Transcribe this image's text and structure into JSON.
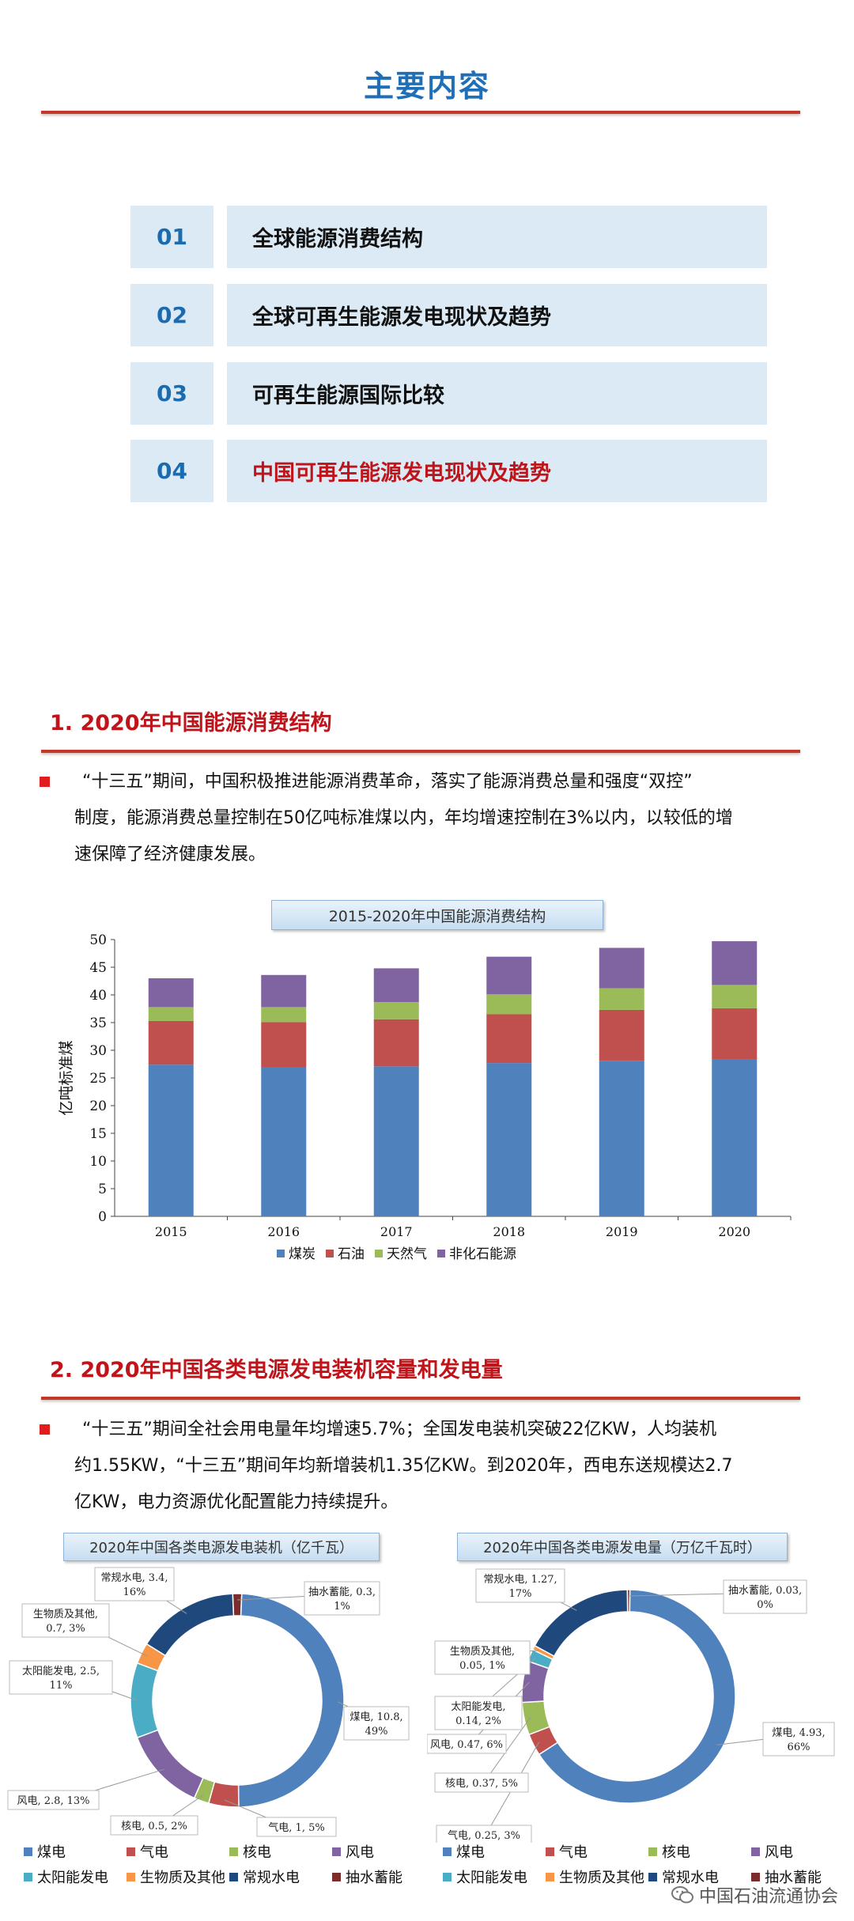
{
  "header": {
    "title": "主要内容"
  },
  "toc": [
    {
      "num": "01",
      "label": "全球能源消费结构",
      "active": false
    },
    {
      "num": "02",
      "label": "全球可再生能源发电现状及趋势",
      "active": false
    },
    {
      "num": "03",
      "label": "可再生能源国际比较",
      "active": false
    },
    {
      "num": "04",
      "label": "中国可再生能源发电现状及趋势",
      "active": true
    }
  ],
  "section1": {
    "title": "1. 2020年中国能源消费结构",
    "lines": [
      "“十三五”期间，中国积极推进能源消费革命，落实了能源消费总量和强度“双控”",
      "制度，能源消费总量控制在50亿吨标准煤以内，年均增速控制在3%以内，以较低的增",
      "速保障了经济健康发展。"
    ]
  },
  "section2": {
    "title": "2. 2020年中国各类电源发电装机容量和发电量",
    "lines": [
      "“十三五”期间全社会用电量年均增速5.7%；全国发电装机突破22亿KW，人均装机",
      "约1.55KW，“十三五”期间年均新增装机1.35亿KW。到2020年，西电东送规模达2.7",
      "亿KW，电力资源优化配置能力持续提升。"
    ]
  },
  "colors": {
    "coal": "#4f81bd",
    "gas": "#c0504d",
    "nuclear": "#9bbb59",
    "wind": "#8064a2",
    "solar": "#4bacc6",
    "bio": "#f79646",
    "hydro": "#1f497d",
    "pumped": "#7b2c2c",
    "accent_red": "#c0141b",
    "accent_blue": "#1f6fb8"
  },
  "chart_data": [
    {
      "type": "bar",
      "stacked": true,
      "title": "2015-2020年中国能源消费结构",
      "ylabel": "亿吨标准煤",
      "xlabel": "",
      "ylim": [
        0,
        50
      ],
      "yticks": [
        0,
        5,
        10,
        15,
        20,
        25,
        30,
        35,
        40,
        45,
        50
      ],
      "categories": [
        "2015",
        "2016",
        "2017",
        "2018",
        "2019",
        "2020"
      ],
      "legend_position": "bottom",
      "series": [
        {
          "name": "煤炭",
          "color": "#4f81bd",
          "values": [
            27.4,
            27.0,
            27.1,
            27.7,
            28.1,
            28.3
          ]
        },
        {
          "name": "石油",
          "color": "#c0504d",
          "values": [
            7.9,
            8.1,
            8.5,
            8.8,
            9.2,
            9.3
          ]
        },
        {
          "name": "天然气",
          "color": "#9bbb59",
          "values": [
            2.5,
            2.7,
            3.1,
            3.6,
            3.9,
            4.2
          ]
        },
        {
          "name": "非化石能源",
          "color": "#8064a2",
          "values": [
            5.2,
            5.8,
            6.1,
            6.8,
            7.3,
            7.9
          ]
        }
      ]
    },
    {
      "type": "pie",
      "donut": true,
      "title": "2020年中国各类电源发电装机（亿千瓦）",
      "slices": [
        {
          "name": "煤电",
          "value": 10.8,
          "label": "煤电, 10.8,",
          "pct": "49%",
          "color": "#4f81bd"
        },
        {
          "name": "气电",
          "value": 1,
          "label": "气电, 1, 5%",
          "pct": "",
          "color": "#c0504d"
        },
        {
          "name": "核电",
          "value": 0.5,
          "label": "核电, 0.5, 2%",
          "pct": "",
          "color": "#9bbb59"
        },
        {
          "name": "风电",
          "value": 2.8,
          "label": "风电, 2.8, 13%",
          "pct": "",
          "color": "#8064a2"
        },
        {
          "name": "太阳能发电",
          "value": 2.5,
          "label": "太阳能发电, 2.5,",
          "pct": "11%",
          "color": "#4bacc6"
        },
        {
          "name": "生物质及其他",
          "value": 0.7,
          "label": "生物质及其他,",
          "pct": "0.7, 3%",
          "color": "#f79646"
        },
        {
          "name": "常规水电",
          "value": 3.4,
          "label": "常规水电, 3.4,",
          "pct": "16%",
          "color": "#1f497d"
        },
        {
          "name": "抽水蓄能",
          "value": 0.3,
          "label": "抽水蓄能, 0.3,",
          "pct": "1%",
          "color": "#7b2c2c"
        }
      ]
    },
    {
      "type": "pie",
      "donut": true,
      "title": "2020年中国各类电源发电量（万亿千瓦时）",
      "slices": [
        {
          "name": "煤电",
          "value": 4.93,
          "label": "煤电, 4.93,",
          "pct": "66%",
          "color": "#4f81bd"
        },
        {
          "name": "气电",
          "value": 0.25,
          "label": "气电, 0.25, 3%",
          "pct": "",
          "color": "#c0504d"
        },
        {
          "name": "核电",
          "value": 0.37,
          "label": "核电, 0.37, 5%",
          "pct": "",
          "color": "#9bbb59"
        },
        {
          "name": "风电",
          "value": 0.47,
          "label": "风电, 0.47, 6%",
          "pct": "",
          "color": "#8064a2"
        },
        {
          "name": "太阳能发电",
          "value": 0.14,
          "label": "太阳能发电,",
          "pct": "0.14, 2%",
          "color": "#4bacc6"
        },
        {
          "name": "生物质及其他",
          "value": 0.05,
          "label": "生物质及其他,",
          "pct": "0.05, 1%",
          "color": "#f79646"
        },
        {
          "name": "常规水电",
          "value": 1.27,
          "label": "常规水电, 1.27,",
          "pct": "17%",
          "color": "#1f497d"
        },
        {
          "name": "抽水蓄能",
          "value": 0.03,
          "label": "抽水蓄能, 0.03,",
          "pct": "0%",
          "color": "#7b2c2c"
        }
      ]
    }
  ],
  "pie_legend": [
    "煤电",
    "气电",
    "核电",
    "风电",
    "太阳能发电",
    "生物质及其他",
    "常规水电",
    "抽水蓄能"
  ],
  "watermark": {
    "text": "中国石油流通协会",
    "icon": "wechat-icon"
  }
}
